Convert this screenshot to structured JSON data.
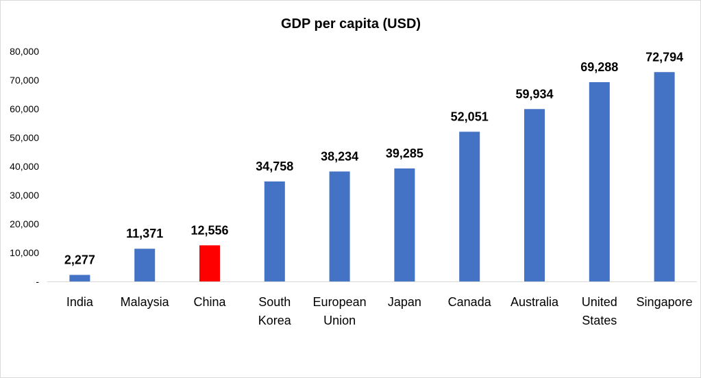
{
  "chart_data": {
    "type": "bar",
    "title": "GDP per capita (USD)",
    "xlabel": "",
    "ylabel": "",
    "categories": [
      "India",
      "Malaysia",
      "China",
      "South Korea",
      "European Union",
      "Japan",
      "Canada",
      "Australia",
      "United States",
      "Singapore"
    ],
    "category_lines": [
      [
        "India"
      ],
      [
        "Malaysia"
      ],
      [
        "China"
      ],
      [
        "South",
        "Korea"
      ],
      [
        "European",
        "Union"
      ],
      [
        "Japan"
      ],
      [
        "Canada"
      ],
      [
        "Australia"
      ],
      [
        "United",
        "States"
      ],
      [
        "Singapore"
      ]
    ],
    "values": [
      2277,
      11371,
      12556,
      34758,
      38234,
      39285,
      52051,
      59934,
      69288,
      72794
    ],
    "value_labels": [
      "2,277",
      "11,371",
      "12,556",
      "34,758",
      "38,234",
      "39,285",
      "52,051",
      "59,934",
      "69,288",
      "72,794"
    ],
    "highlight_index": 2,
    "ylim": [
      0,
      80000
    ],
    "yticks": [
      0,
      10000,
      20000,
      30000,
      40000,
      50000,
      60000,
      70000,
      80000
    ],
    "ytick_labels": [
      "-",
      "10,000",
      "20,000",
      "30,000",
      "40,000",
      "50,000",
      "60,000",
      "70,000",
      "80,000"
    ],
    "grid": false,
    "legend": "none",
    "colors": {
      "bar": "#4472C4",
      "highlight_bar": "#FF0000",
      "highlight_label": "#FF0000",
      "axis": "#D9D9D9",
      "text": "#000000"
    }
  }
}
